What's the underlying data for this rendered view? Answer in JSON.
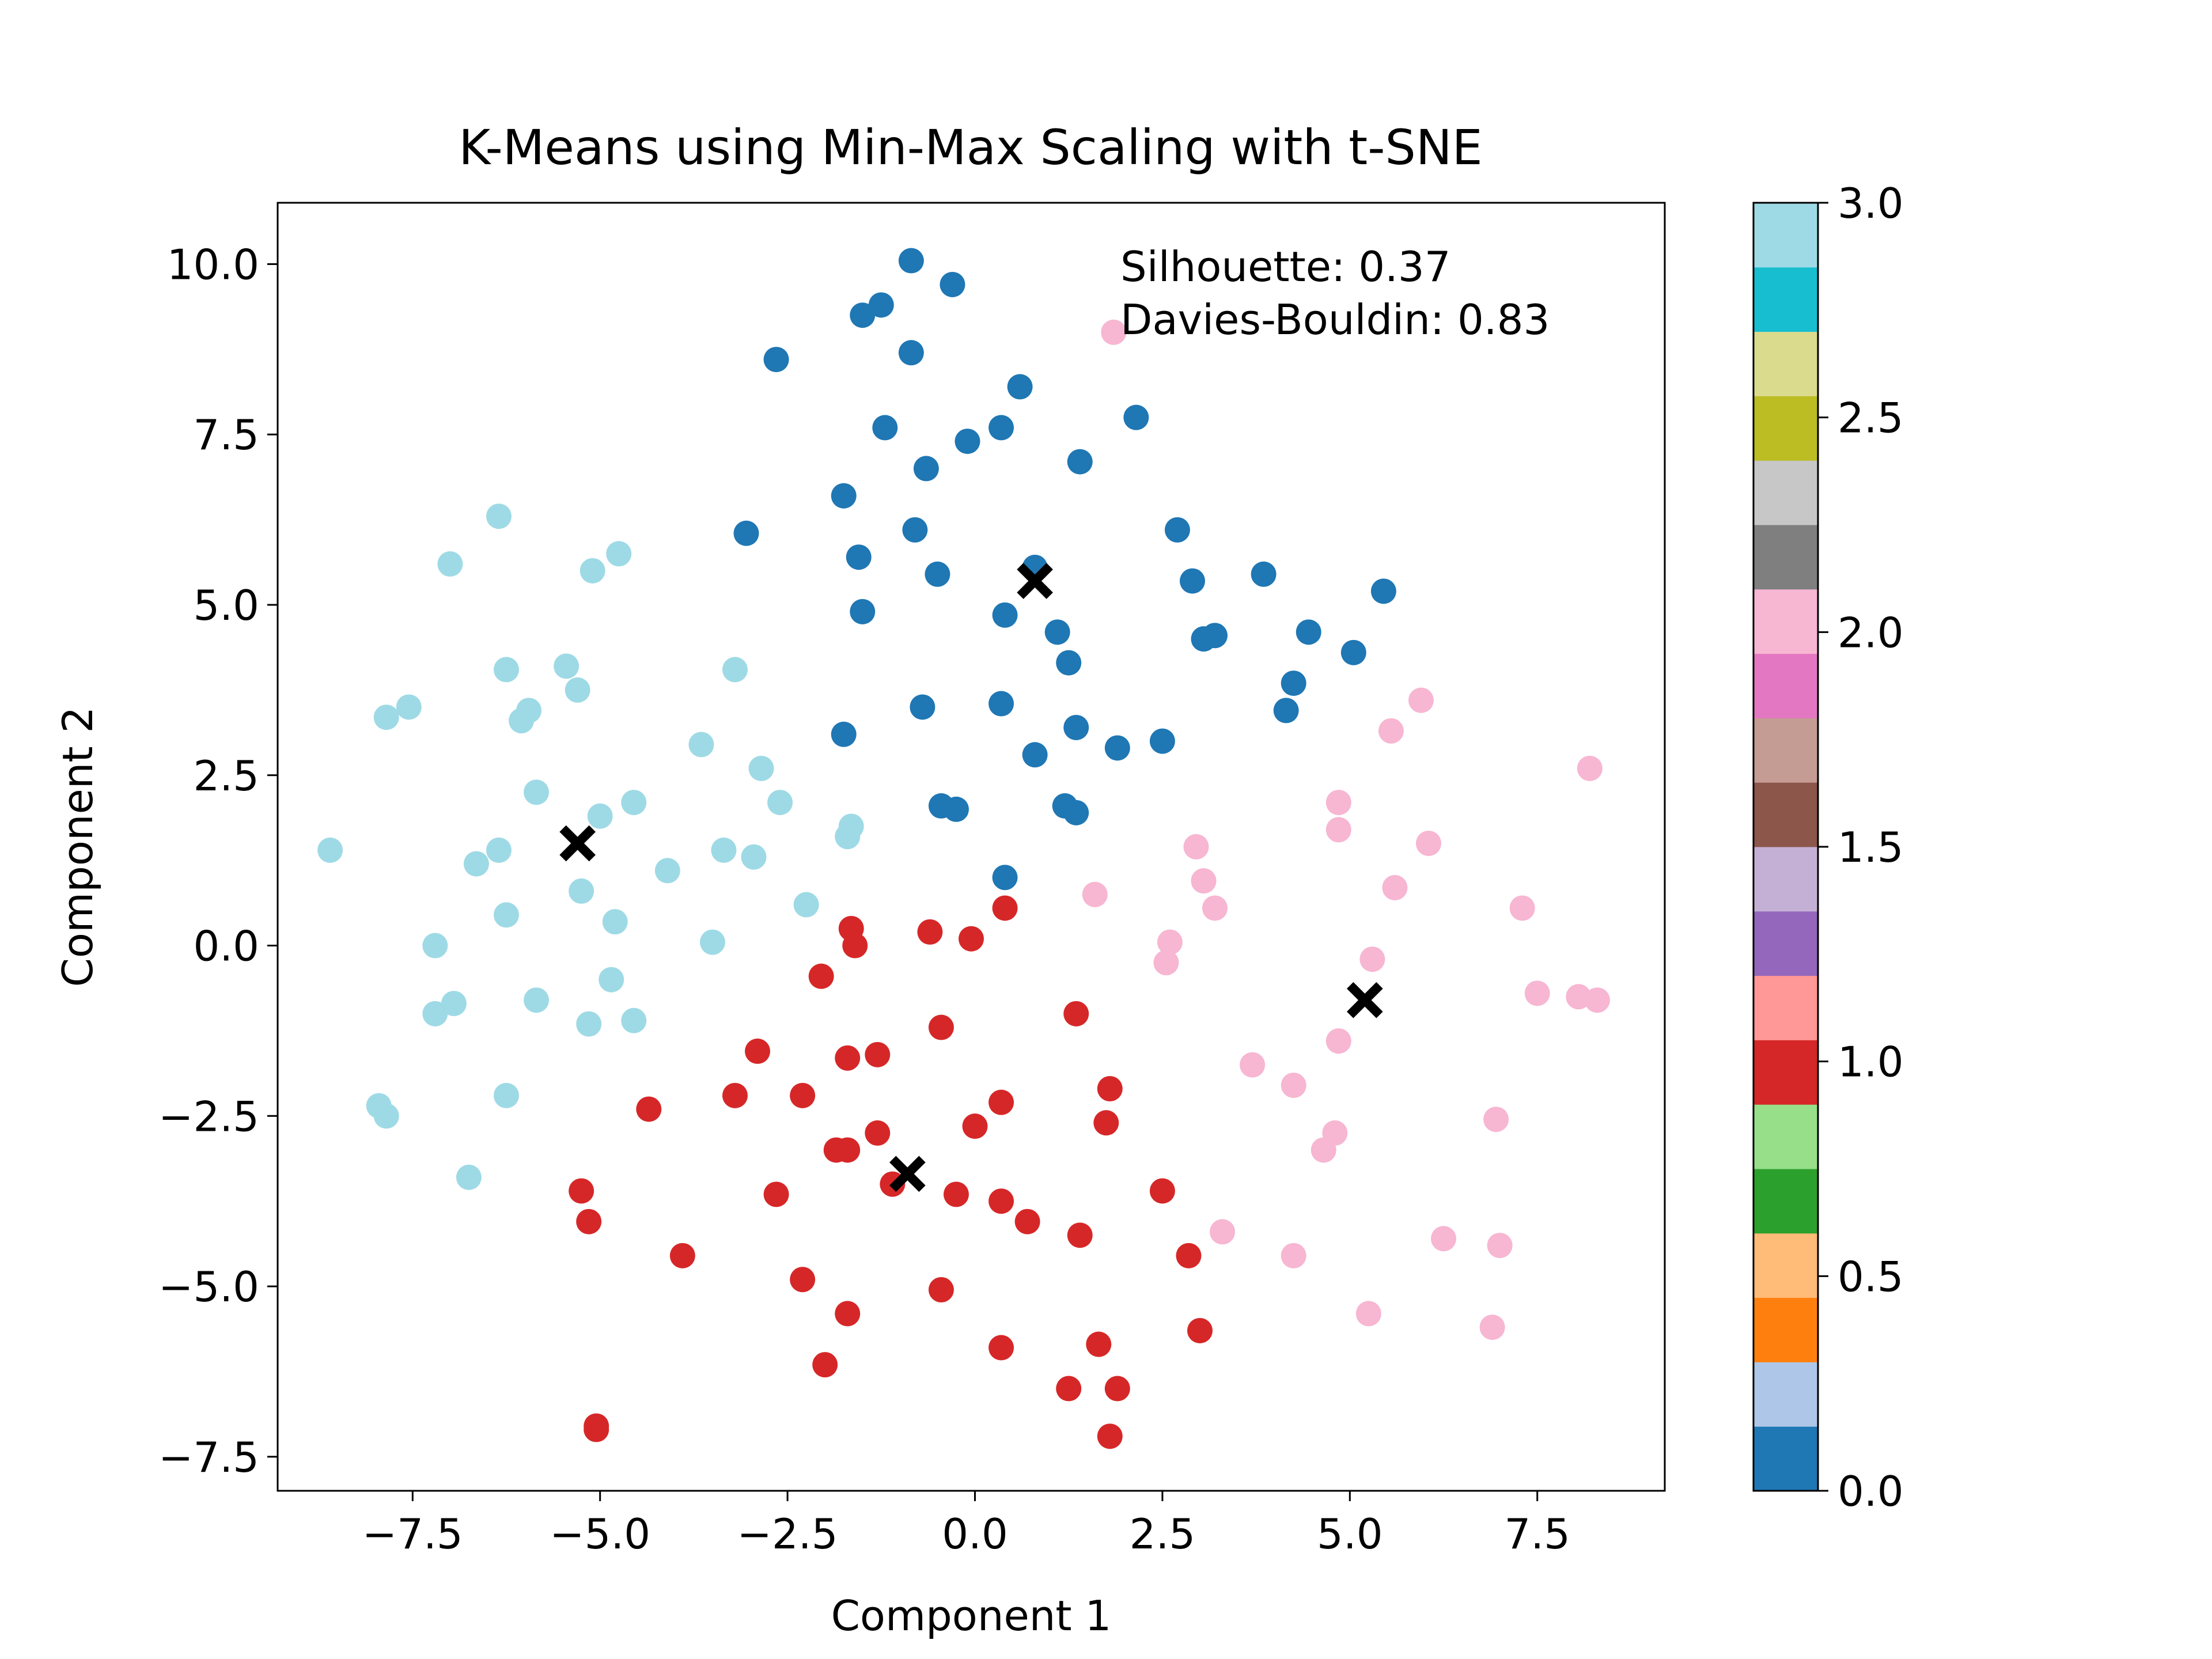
{
  "chart_data": {
    "type": "scatter",
    "title": "K-Means using Min-Max Scaling with t-SNE",
    "xlabel": "Component 1",
    "ylabel": "Component 2",
    "xlim": [
      -9.3,
      9.2
    ],
    "ylim": [
      -8.0,
      10.9
    ],
    "xticks": [
      -7.5,
      -5.0,
      -2.5,
      0.0,
      2.5,
      5.0,
      7.5
    ],
    "xtick_labels": [
      "−7.5",
      "−5.0",
      "−2.5",
      "0.0",
      "2.5",
      "5.0",
      "7.5"
    ],
    "yticks": [
      -7.5,
      -5.0,
      -2.5,
      0.0,
      2.5,
      5.0,
      7.5,
      10.0
    ],
    "ytick_labels": [
      "−7.5",
      "−5.0",
      "−2.5",
      "0.0",
      "2.5",
      "5.0",
      "7.5",
      "10.0"
    ],
    "grid": false,
    "annotations": [
      "Silhouette: 0.37",
      "Davies-Bouldin: 0.83"
    ],
    "colorbar": {
      "colormap": "tab20",
      "range": [
        0.0,
        3.0
      ],
      "ticks": [
        0.0,
        0.5,
        1.0,
        1.5,
        2.0,
        2.5,
        3.0
      ],
      "tick_labels": [
        "0.0",
        "0.5",
        "1.0",
        "1.5",
        "2.0",
        "2.5",
        "3.0"
      ],
      "colors": [
        "#1f77b4",
        "#aec7e8",
        "#ff7f0e",
        "#ffbb78",
        "#2ca02c",
        "#98df8a",
        "#d62728",
        "#ff9896",
        "#9467bd",
        "#c5b0d5",
        "#8c564b",
        "#c49c94",
        "#e377c2",
        "#f7b6d2",
        "#7f7f7f",
        "#c7c7c7",
        "#bcbd22",
        "#dbdb8d",
        "#17becf",
        "#9edae5"
      ]
    },
    "cluster_colors": [
      "#1f77b4",
      "#d62728",
      "#f7b6d2",
      "#9edae5"
    ],
    "points": [
      {
        "cluster": 0,
        "x": -0.85,
        "y": 10.05
      },
      {
        "cluster": 0,
        "x": -0.3,
        "y": 9.7
      },
      {
        "cluster": 0,
        "x": -1.25,
        "y": 9.4
      },
      {
        "cluster": 0,
        "x": -1.5,
        "y": 9.25
      },
      {
        "cluster": 0,
        "x": -0.85,
        "y": 8.7
      },
      {
        "cluster": 0,
        "x": -2.65,
        "y": 8.6
      },
      {
        "cluster": 0,
        "x": 0.6,
        "y": 8.2
      },
      {
        "cluster": 0,
        "x": 2.15,
        "y": 7.75
      },
      {
        "cluster": 0,
        "x": -1.2,
        "y": 7.6
      },
      {
        "cluster": 0,
        "x": 0.35,
        "y": 7.6
      },
      {
        "cluster": 0,
        "x": -0.1,
        "y": 7.4
      },
      {
        "cluster": 0,
        "x": 1.4,
        "y": 7.1
      },
      {
        "cluster": 0,
        "x": -0.65,
        "y": 7.0
      },
      {
        "cluster": 0,
        "x": -1.75,
        "y": 6.6
      },
      {
        "cluster": 0,
        "x": 2.7,
        "y": 6.1
      },
      {
        "cluster": 0,
        "x": -3.05,
        "y": 6.05
      },
      {
        "cluster": 0,
        "x": -0.8,
        "y": 6.1
      },
      {
        "cluster": 0,
        "x": -1.55,
        "y": 5.7
      },
      {
        "cluster": 0,
        "x": 0.8,
        "y": 5.55
      },
      {
        "cluster": 0,
        "x": -0.5,
        "y": 5.45
      },
      {
        "cluster": 0,
        "x": 3.85,
        "y": 5.45
      },
      {
        "cluster": 0,
        "x": 2.9,
        "y": 5.35
      },
      {
        "cluster": 0,
        "x": 5.45,
        "y": 5.2
      },
      {
        "cluster": 0,
        "x": -1.5,
        "y": 4.9
      },
      {
        "cluster": 0,
        "x": 0.4,
        "y": 4.85
      },
      {
        "cluster": 0,
        "x": 1.1,
        "y": 4.6
      },
      {
        "cluster": 0,
        "x": 4.45,
        "y": 4.6
      },
      {
        "cluster": 0,
        "x": 3.2,
        "y": 4.55
      },
      {
        "cluster": 0,
        "x": 3.05,
        "y": 4.5
      },
      {
        "cluster": 0,
        "x": 5.05,
        "y": 4.3
      },
      {
        "cluster": 0,
        "x": 1.25,
        "y": 4.15
      },
      {
        "cluster": 0,
        "x": 4.25,
        "y": 3.85
      },
      {
        "cluster": 0,
        "x": 0.35,
        "y": 3.55
      },
      {
        "cluster": 0,
        "x": -0.7,
        "y": 3.5
      },
      {
        "cluster": 0,
        "x": 4.15,
        "y": 3.45
      },
      {
        "cluster": 0,
        "x": 1.35,
        "y": 3.2
      },
      {
        "cluster": 0,
        "x": -1.75,
        "y": 3.1
      },
      {
        "cluster": 0,
        "x": 2.5,
        "y": 3.0
      },
      {
        "cluster": 0,
        "x": 1.9,
        "y": 2.9
      },
      {
        "cluster": 0,
        "x": 0.8,
        "y": 2.8
      },
      {
        "cluster": 0,
        "x": -0.45,
        "y": 2.05
      },
      {
        "cluster": 0,
        "x": -0.25,
        "y": 2.0
      },
      {
        "cluster": 0,
        "x": 1.2,
        "y": 2.05
      },
      {
        "cluster": 0,
        "x": 1.35,
        "y": 1.95
      },
      {
        "cluster": 0,
        "x": 0.4,
        "y": 1.0
      },
      {
        "cluster": 1,
        "x": 0.4,
        "y": 0.55
      },
      {
        "cluster": 1,
        "x": -1.65,
        "y": 0.25
      },
      {
        "cluster": 1,
        "x": -0.6,
        "y": 0.2
      },
      {
        "cluster": 1,
        "x": -0.05,
        "y": 0.1
      },
      {
        "cluster": 1,
        "x": -1.6,
        "y": 0.0
      },
      {
        "cluster": 1,
        "x": -2.05,
        "y": -0.45
      },
      {
        "cluster": 1,
        "x": 1.35,
        "y": -1.0
      },
      {
        "cluster": 1,
        "x": -0.45,
        "y": -1.2
      },
      {
        "cluster": 1,
        "x": -2.9,
        "y": -1.55
      },
      {
        "cluster": 1,
        "x": -1.3,
        "y": -1.6
      },
      {
        "cluster": 1,
        "x": -1.7,
        "y": -1.65
      },
      {
        "cluster": 1,
        "x": 1.8,
        "y": -2.1
      },
      {
        "cluster": 1,
        "x": -3.2,
        "y": -2.2
      },
      {
        "cluster": 1,
        "x": -2.3,
        "y": -2.2
      },
      {
        "cluster": 1,
        "x": 0.35,
        "y": -2.3
      },
      {
        "cluster": 1,
        "x": -4.35,
        "y": -2.4
      },
      {
        "cluster": 1,
        "x": 1.75,
        "y": -2.6
      },
      {
        "cluster": 1,
        "x": 0.0,
        "y": -2.65
      },
      {
        "cluster": 1,
        "x": -1.3,
        "y": -2.75
      },
      {
        "cluster": 1,
        "x": -1.85,
        "y": -3.0
      },
      {
        "cluster": 1,
        "x": -1.7,
        "y": -3.0
      },
      {
        "cluster": 1,
        "x": -1.1,
        "y": -3.5
      },
      {
        "cluster": 1,
        "x": -5.25,
        "y": -3.6
      },
      {
        "cluster": 1,
        "x": -2.65,
        "y": -3.65
      },
      {
        "cluster": 1,
        "x": 2.5,
        "y": -3.6
      },
      {
        "cluster": 1,
        "x": -0.25,
        "y": -3.65
      },
      {
        "cluster": 1,
        "x": 0.35,
        "y": -3.75
      },
      {
        "cluster": 1,
        "x": -5.15,
        "y": -4.05
      },
      {
        "cluster": 1,
        "x": 0.7,
        "y": -4.05
      },
      {
        "cluster": 1,
        "x": 1.4,
        "y": -4.25
      },
      {
        "cluster": 1,
        "x": -3.9,
        "y": -4.55
      },
      {
        "cluster": 1,
        "x": 2.85,
        "y": -4.55
      },
      {
        "cluster": 1,
        "x": -2.3,
        "y": -4.9
      },
      {
        "cluster": 1,
        "x": -0.45,
        "y": -5.05
      },
      {
        "cluster": 1,
        "x": -1.7,
        "y": -5.4
      },
      {
        "cluster": 1,
        "x": 3.0,
        "y": -5.65
      },
      {
        "cluster": 1,
        "x": 1.65,
        "y": -5.85
      },
      {
        "cluster": 1,
        "x": 0.35,
        "y": -5.9
      },
      {
        "cluster": 1,
        "x": -2.0,
        "y": -6.15
      },
      {
        "cluster": 1,
        "x": 1.25,
        "y": -6.5
      },
      {
        "cluster": 1,
        "x": 1.9,
        "y": -6.5
      },
      {
        "cluster": 1,
        "x": -5.05,
        "y": -7.05
      },
      {
        "cluster": 1,
        "x": -5.05,
        "y": -7.1
      },
      {
        "cluster": 1,
        "x": 1.8,
        "y": -7.2
      },
      {
        "cluster": 2,
        "x": 1.85,
        "y": 9.0
      },
      {
        "cluster": 2,
        "x": 5.95,
        "y": 3.6
      },
      {
        "cluster": 2,
        "x": 5.55,
        "y": 3.15
      },
      {
        "cluster": 2,
        "x": 8.2,
        "y": 2.6
      },
      {
        "cluster": 2,
        "x": 4.85,
        "y": 2.1
      },
      {
        "cluster": 2,
        "x": 4.85,
        "y": 1.7
      },
      {
        "cluster": 2,
        "x": 6.05,
        "y": 1.5
      },
      {
        "cluster": 2,
        "x": 2.95,
        "y": 1.45
      },
      {
        "cluster": 2,
        "x": 3.05,
        "y": 0.95
      },
      {
        "cluster": 2,
        "x": 5.6,
        "y": 0.85
      },
      {
        "cluster": 2,
        "x": 1.6,
        "y": 0.75
      },
      {
        "cluster": 2,
        "x": 7.3,
        "y": 0.55
      },
      {
        "cluster": 2,
        "x": 3.2,
        "y": 0.55
      },
      {
        "cluster": 2,
        "x": 2.6,
        "y": 0.05
      },
      {
        "cluster": 2,
        "x": 5.3,
        "y": -0.2
      },
      {
        "cluster": 2,
        "x": 2.55,
        "y": -0.25
      },
      {
        "cluster": 2,
        "x": 7.5,
        "y": -0.7
      },
      {
        "cluster": 2,
        "x": 8.05,
        "y": -0.75
      },
      {
        "cluster": 2,
        "x": 8.3,
        "y": -0.8
      },
      {
        "cluster": 2,
        "x": 4.85,
        "y": -1.4
      },
      {
        "cluster": 2,
        "x": 3.7,
        "y": -1.75
      },
      {
        "cluster": 2,
        "x": 4.25,
        "y": -2.05
      },
      {
        "cluster": 2,
        "x": 6.95,
        "y": -2.55
      },
      {
        "cluster": 2,
        "x": 4.8,
        "y": -2.75
      },
      {
        "cluster": 2,
        "x": 4.65,
        "y": -3.0
      },
      {
        "cluster": 2,
        "x": 3.3,
        "y": -4.2
      },
      {
        "cluster": 2,
        "x": 6.25,
        "y": -4.3
      },
      {
        "cluster": 2,
        "x": 7.0,
        "y": -4.4
      },
      {
        "cluster": 2,
        "x": 4.25,
        "y": -4.55
      },
      {
        "cluster": 2,
        "x": 5.25,
        "y": -5.4
      },
      {
        "cluster": 2,
        "x": 6.9,
        "y": -5.6
      },
      {
        "cluster": 3,
        "x": -6.35,
        "y": 6.3
      },
      {
        "cluster": 3,
        "x": -4.75,
        "y": 5.75
      },
      {
        "cluster": 3,
        "x": -7.0,
        "y": 5.6
      },
      {
        "cluster": 3,
        "x": -5.1,
        "y": 5.5
      },
      {
        "cluster": 3,
        "x": -5.45,
        "y": 4.1
      },
      {
        "cluster": 3,
        "x": -6.25,
        "y": 4.05
      },
      {
        "cluster": 3,
        "x": -3.2,
        "y": 4.05
      },
      {
        "cluster": 3,
        "x": -5.3,
        "y": 3.75
      },
      {
        "cluster": 3,
        "x": -7.55,
        "y": 3.5
      },
      {
        "cluster": 3,
        "x": -5.95,
        "y": 3.45
      },
      {
        "cluster": 3,
        "x": -7.85,
        "y": 3.35
      },
      {
        "cluster": 3,
        "x": -6.05,
        "y": 3.3
      },
      {
        "cluster": 3,
        "x": -3.65,
        "y": 2.95
      },
      {
        "cluster": 3,
        "x": -2.85,
        "y": 2.6
      },
      {
        "cluster": 3,
        "x": -5.85,
        "y": 2.25
      },
      {
        "cluster": 3,
        "x": -2.6,
        "y": 2.1
      },
      {
        "cluster": 3,
        "x": -4.55,
        "y": 2.1
      },
      {
        "cluster": 3,
        "x": -5.0,
        "y": 1.9
      },
      {
        "cluster": 3,
        "x": -1.65,
        "y": 1.75
      },
      {
        "cluster": 3,
        "x": -1.7,
        "y": 1.6
      },
      {
        "cluster": 3,
        "x": -8.6,
        "y": 1.4
      },
      {
        "cluster": 3,
        "x": -6.35,
        "y": 1.4
      },
      {
        "cluster": 3,
        "x": -3.35,
        "y": 1.4
      },
      {
        "cluster": 3,
        "x": -2.95,
        "y": 1.3
      },
      {
        "cluster": 3,
        "x": -6.65,
        "y": 1.2
      },
      {
        "cluster": 3,
        "x": -4.1,
        "y": 1.1
      },
      {
        "cluster": 3,
        "x": -5.25,
        "y": 0.8
      },
      {
        "cluster": 3,
        "x": -2.25,
        "y": 0.6
      },
      {
        "cluster": 3,
        "x": -6.25,
        "y": 0.45
      },
      {
        "cluster": 3,
        "x": -4.8,
        "y": 0.35
      },
      {
        "cluster": 3,
        "x": -3.5,
        "y": 0.05
      },
      {
        "cluster": 3,
        "x": -7.2,
        "y": 0.0
      },
      {
        "cluster": 3,
        "x": -4.85,
        "y": -0.5
      },
      {
        "cluster": 3,
        "x": -5.85,
        "y": -0.8
      },
      {
        "cluster": 3,
        "x": -6.95,
        "y": -0.85
      },
      {
        "cluster": 3,
        "x": -7.2,
        "y": -1.0
      },
      {
        "cluster": 3,
        "x": -4.55,
        "y": -1.1
      },
      {
        "cluster": 3,
        "x": -5.15,
        "y": -1.15
      },
      {
        "cluster": 3,
        "x": -6.25,
        "y": -2.2
      },
      {
        "cluster": 3,
        "x": -7.95,
        "y": -2.35
      },
      {
        "cluster": 3,
        "x": -7.85,
        "y": -2.5
      },
      {
        "cluster": 3,
        "x": -6.75,
        "y": -3.4
      }
    ],
    "centroids": [
      {
        "x": 0.8,
        "y": 5.35
      },
      {
        "x": -0.9,
        "y": -3.35
      },
      {
        "x": 5.2,
        "y": -0.8
      },
      {
        "x": -5.3,
        "y": 1.5
      }
    ]
  }
}
